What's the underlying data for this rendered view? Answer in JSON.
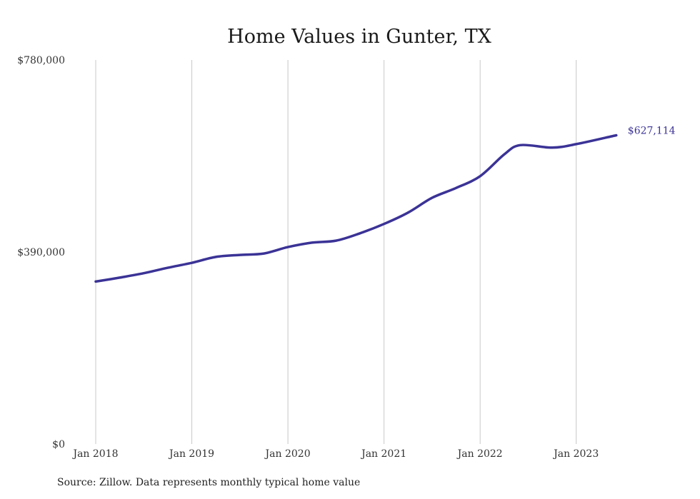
{
  "chart_data": {
    "type": "line",
    "title": "Home Values in Gunter, TX",
    "xlabel": "",
    "ylabel": "",
    "ylim": [
      0,
      780000
    ],
    "y_ticks": [
      {
        "value": 0,
        "label": "$0"
      },
      {
        "value": 390000,
        "label": "$390,000"
      },
      {
        "value": 780000,
        "label": "$780,000"
      }
    ],
    "x_ticks": [
      {
        "value": 2018,
        "label": "Jan 2018"
      },
      {
        "value": 2019,
        "label": "Jan 2019"
      },
      {
        "value": 2020,
        "label": "Jan 2020"
      },
      {
        "value": 2021,
        "label": "Jan 2021"
      },
      {
        "value": 2022,
        "label": "Jan 2022"
      },
      {
        "value": 2023,
        "label": "Jan 2023"
      }
    ],
    "xlim": [
      2018,
      2023.5
    ],
    "grid": {
      "vertical": true,
      "horizontal": false
    },
    "series": [
      {
        "color": "#3b3396",
        "x": [
          "Jan 2018",
          "Apr 2018",
          "Jul 2018",
          "Oct 2018",
          "Jan 2019",
          "Apr 2019",
          "Jul 2019",
          "Oct 2019",
          "Jan 2020",
          "Apr 2020",
          "Jul 2020",
          "Oct 2020",
          "Jan 2021",
          "Apr 2021",
          "Jul 2021",
          "Oct 2021",
          "Jan 2022",
          "Apr 2022",
          "Jun 2022",
          "Oct 2022",
          "Jan 2023",
          "Jun 2023"
        ],
        "values": [
          330000,
          338000,
          347000,
          358000,
          368000,
          380000,
          384000,
          387000,
          400000,
          409000,
          413000,
          428000,
          447000,
          470000,
          500000,
          520000,
          544000,
          588000,
          607000,
          602000,
          609000,
          627114
        ],
        "end_label": "$627,114"
      }
    ]
  },
  "source_note": "Source: Zillow. Data represents monthly typical home value"
}
